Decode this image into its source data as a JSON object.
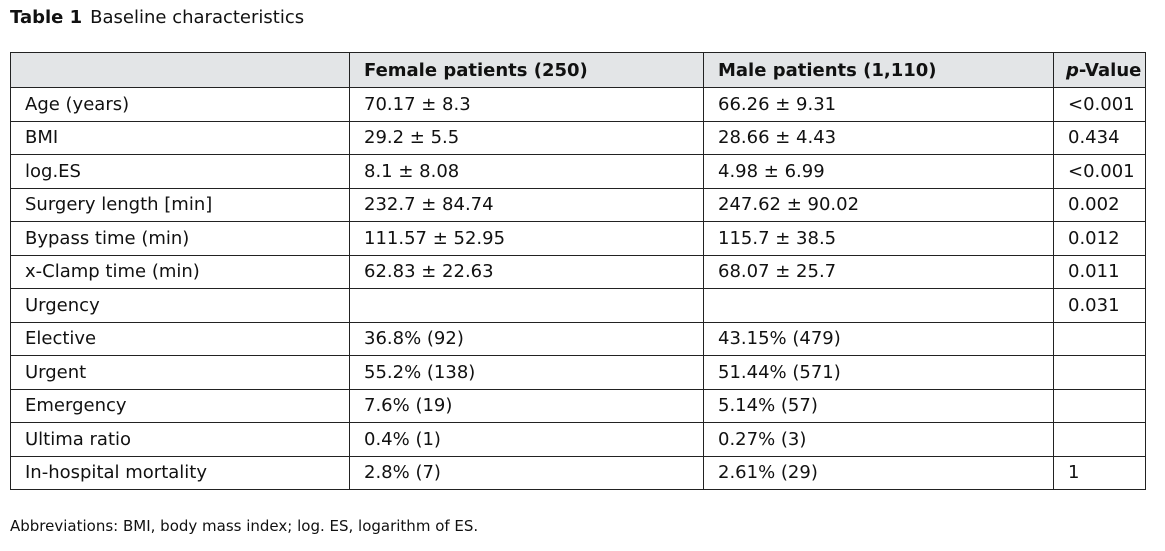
{
  "caption": {
    "label": "Table 1",
    "title": "Baseline characteristics"
  },
  "table": {
    "headers": {
      "characteristic": "",
      "female": "Female patients (250)",
      "male": "Male patients (1,110)",
      "p_italic": "p",
      "p_rest": "-Value"
    },
    "rows": [
      {
        "label": "Age (years)",
        "female": "70.17 ± 8.3",
        "male": "66.26 ± 9.31",
        "p": "<0.001"
      },
      {
        "label": "BMI",
        "female": "29.2 ± 5.5",
        "male": "28.66 ± 4.43",
        "p": "0.434"
      },
      {
        "label": "log.ES",
        "female": "8.1 ± 8.08",
        "male": "4.98 ± 6.99",
        "p": "<0.001"
      },
      {
        "label": "Surgery length [min]",
        "female": "232.7 ± 84.74",
        "male": "247.62 ± 90.02",
        "p": "0.002"
      },
      {
        "label": "Bypass time (min)",
        "female": "111.57 ± 52.95",
        "male": "115.7 ± 38.5",
        "p": "0.012"
      },
      {
        "label": "x-Clamp time (min)",
        "female": "62.83 ± 22.63",
        "male": "68.07 ± 25.7",
        "p": "0.011"
      },
      {
        "label": "Urgency",
        "female": "",
        "male": "",
        "p": "0.031"
      },
      {
        "label": "Elective",
        "female": "36.8% (92)",
        "male": "43.15% (479)",
        "p": ""
      },
      {
        "label": "Urgent",
        "female": "55.2% (138)",
        "male": "51.44% (571)",
        "p": ""
      },
      {
        "label": "Emergency",
        "female": "7.6% (19)",
        "male": "5.14% (57)",
        "p": ""
      },
      {
        "label": "Ultima ratio",
        "female": "0.4% (1)",
        "male": "0.27% (3)",
        "p": ""
      },
      {
        "label": "In-hospital mortality",
        "female": "2.8% (7)",
        "male": "2.61% (29)",
        "p": "1"
      }
    ]
  },
  "footnote": "Abbreviations: BMI, body mass index; log. ES, logarithm of ES."
}
